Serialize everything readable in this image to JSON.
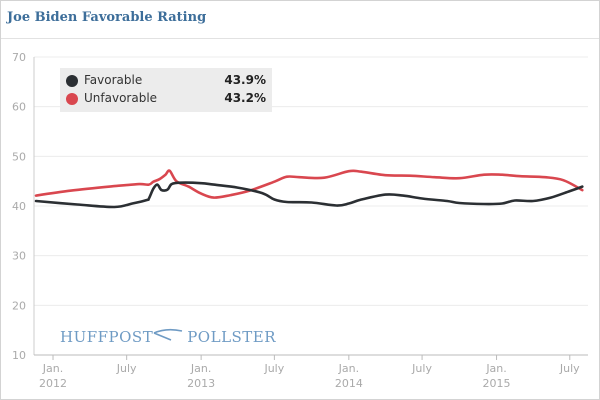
{
  "title": "Joe Biden Favorable Rating",
  "watermark": {
    "left": "HUFFPOST",
    "right": "POLLSTER"
  },
  "legend": [
    {
      "name": "Favorable",
      "value": "43.9%",
      "color": "#2b2f33"
    },
    {
      "name": "Unfavorable",
      "value": "43.2%",
      "color": "#d9474f"
    }
  ],
  "chart_data": {
    "type": "line",
    "title": "Joe Biden Favorable Rating",
    "xlabel": "",
    "ylabel": "",
    "ylim": [
      10,
      70
    ],
    "yticks": [
      10,
      20,
      30,
      40,
      50,
      60,
      70
    ],
    "xlim": [
      "2011-11-15",
      "2015-08-15"
    ],
    "xticks": [
      {
        "date": "2012-01-01",
        "label": "Jan.",
        "year": "2012"
      },
      {
        "date": "2012-07-01",
        "label": "July",
        "year": ""
      },
      {
        "date": "2013-01-01",
        "label": "Jan.",
        "year": "2013"
      },
      {
        "date": "2013-07-01",
        "label": "July",
        "year": ""
      },
      {
        "date": "2014-01-01",
        "label": "Jan.",
        "year": "2014"
      },
      {
        "date": "2014-07-01",
        "label": "July",
        "year": ""
      },
      {
        "date": "2015-01-01",
        "label": "Jan.",
        "year": "2015"
      },
      {
        "date": "2015-07-01",
        "label": "July",
        "year": ""
      }
    ],
    "grid": "horizontal",
    "legend_position": "top-left",
    "series": [
      {
        "name": "Favorable",
        "color": "#2b2f33",
        "points": [
          [
            "2011-11-20",
            41.0
          ],
          [
            "2012-03-01",
            40.3
          ],
          [
            "2012-06-01",
            39.8
          ],
          [
            "2012-07-15",
            40.5
          ],
          [
            "2012-08-20",
            41.2
          ],
          [
            "2012-08-25",
            41.5
          ],
          [
            "2012-09-05",
            43.5
          ],
          [
            "2012-09-15",
            44.3
          ],
          [
            "2012-09-25",
            43.2
          ],
          [
            "2012-10-10",
            43.3
          ],
          [
            "2012-10-20",
            44.4
          ],
          [
            "2012-11-10",
            44.7
          ],
          [
            "2013-01-01",
            44.6
          ],
          [
            "2013-02-01",
            44.3
          ],
          [
            "2013-04-01",
            43.7
          ],
          [
            "2013-06-01",
            42.6
          ],
          [
            "2013-07-01",
            41.3
          ],
          [
            "2013-08-01",
            40.8
          ],
          [
            "2013-10-01",
            40.7
          ],
          [
            "2013-12-01",
            40.1
          ],
          [
            "2014-01-01",
            40.5
          ],
          [
            "2014-02-01",
            41.3
          ],
          [
            "2014-04-01",
            42.3
          ],
          [
            "2014-05-15",
            42.1
          ],
          [
            "2014-07-01",
            41.5
          ],
          [
            "2014-09-01",
            41.0
          ],
          [
            "2014-10-01",
            40.6
          ],
          [
            "2014-12-01",
            40.4
          ],
          [
            "2015-01-15",
            40.5
          ],
          [
            "2015-02-15",
            41.1
          ],
          [
            "2015-04-01",
            41.0
          ],
          [
            "2015-05-15",
            41.7
          ],
          [
            "2015-07-01",
            43.0
          ],
          [
            "2015-08-01",
            43.9
          ]
        ]
      },
      {
        "name": "Unfavorable",
        "color": "#d9474f",
        "points": [
          [
            "2011-11-20",
            42.1
          ],
          [
            "2012-02-15",
            43.1
          ],
          [
            "2012-06-01",
            44.0
          ],
          [
            "2012-08-01",
            44.4
          ],
          [
            "2012-08-25",
            44.3
          ],
          [
            "2012-09-05",
            44.9
          ],
          [
            "2012-09-20",
            45.4
          ],
          [
            "2012-10-05",
            46.3
          ],
          [
            "2012-10-15",
            47.1
          ],
          [
            "2012-11-01",
            45.0
          ],
          [
            "2012-12-01",
            43.9
          ],
          [
            "2013-01-01",
            42.5
          ],
          [
            "2013-02-01",
            41.7
          ],
          [
            "2013-03-15",
            42.2
          ],
          [
            "2013-05-01",
            43.1
          ],
          [
            "2013-07-01",
            44.9
          ],
          [
            "2013-08-01",
            45.9
          ],
          [
            "2013-09-01",
            45.8
          ],
          [
            "2013-11-01",
            45.7
          ],
          [
            "2014-01-01",
            47.0
          ],
          [
            "2014-02-01",
            46.9
          ],
          [
            "2014-04-01",
            46.2
          ],
          [
            "2014-06-01",
            46.1
          ],
          [
            "2014-08-01",
            45.8
          ],
          [
            "2014-10-01",
            45.6
          ],
          [
            "2014-12-01",
            46.3
          ],
          [
            "2015-01-15",
            46.3
          ],
          [
            "2015-03-01",
            46.0
          ],
          [
            "2015-05-01",
            45.8
          ],
          [
            "2015-06-15",
            45.2
          ],
          [
            "2015-08-01",
            43.2
          ]
        ]
      }
    ]
  }
}
